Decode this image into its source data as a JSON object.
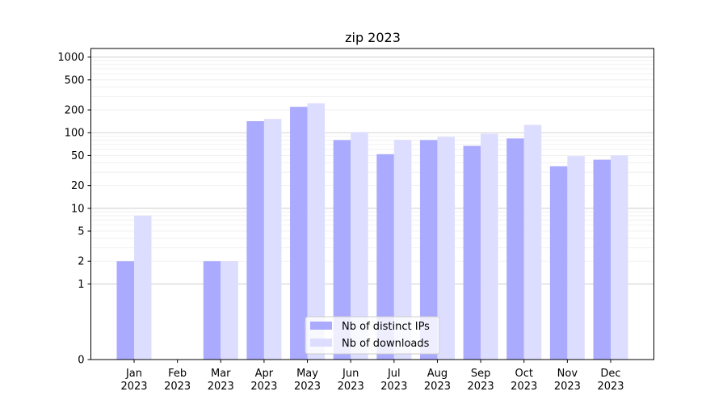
{
  "chart_data": {
    "type": "bar",
    "title": "zip 2023",
    "xlabel": "",
    "ylabel": "",
    "yscale": "symlog",
    "ylim": [
      0,
      1300
    ],
    "y_ticks": [
      0,
      1,
      2,
      5,
      10,
      20,
      50,
      100,
      200,
      500,
      1000
    ],
    "y_tick_labels": [
      "0",
      "1",
      "2",
      "5",
      "10",
      "20",
      "50",
      "100",
      "200",
      "500",
      "1000"
    ],
    "categories": [
      {
        "month": "Jan",
        "year": "2023"
      },
      {
        "month": "Feb",
        "year": "2023"
      },
      {
        "month": "Mar",
        "year": "2023"
      },
      {
        "month": "Apr",
        "year": "2023"
      },
      {
        "month": "May",
        "year": "2023"
      },
      {
        "month": "Jun",
        "year": "2023"
      },
      {
        "month": "Jul",
        "year": "2023"
      },
      {
        "month": "Aug",
        "year": "2023"
      },
      {
        "month": "Sep",
        "year": "2023"
      },
      {
        "month": "Oct",
        "year": "2023"
      },
      {
        "month": "Nov",
        "year": "2023"
      },
      {
        "month": "Dec",
        "year": "2023"
      }
    ],
    "series": [
      {
        "name": "Nb of distinct IPs",
        "color": "#aaaaff",
        "values": [
          2,
          0,
          2,
          142,
          220,
          80,
          52,
          80,
          67,
          84,
          36,
          44
        ]
      },
      {
        "name": "Nb of downloads",
        "color": "#ddddff",
        "values": [
          8,
          0,
          2,
          152,
          245,
          102,
          80,
          88,
          97,
          127,
          49,
          50
        ]
      }
    ],
    "grid": {
      "major": true,
      "minor": true
    },
    "legend": {
      "placement": "bottom-center"
    }
  }
}
